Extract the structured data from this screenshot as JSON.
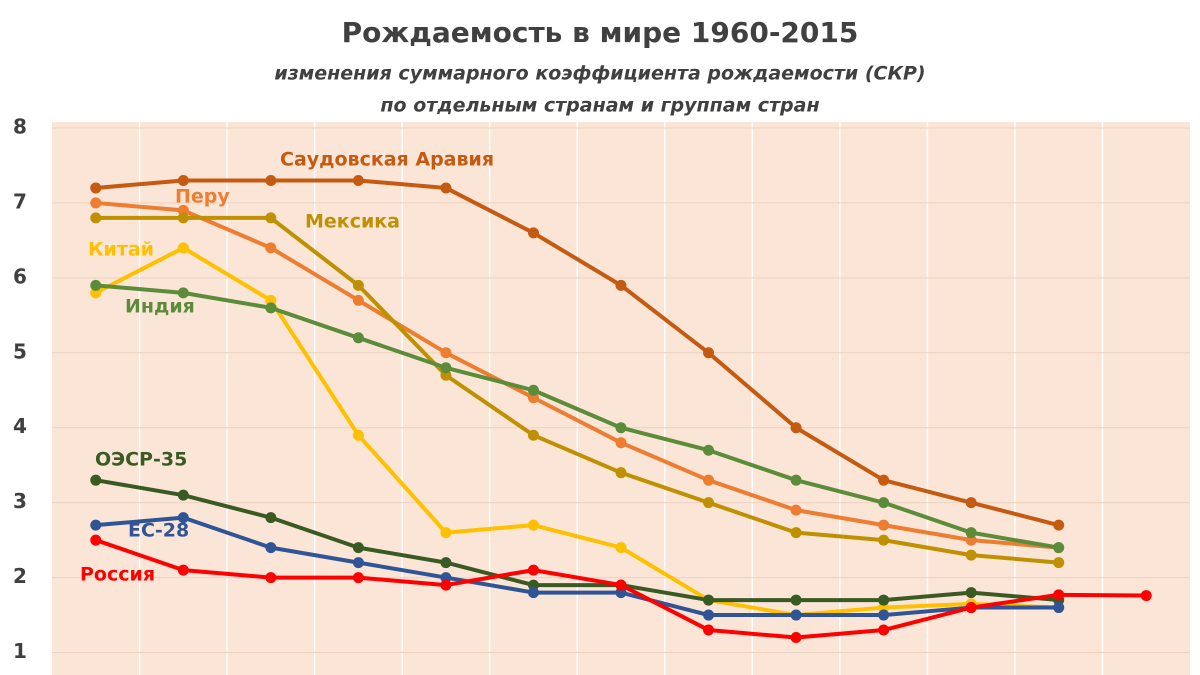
{
  "chart_data": {
    "type": "line",
    "title": "Рождаемость в мире 1960-2015",
    "subtitle": [
      "изменения суммарного коэффициента рождаемости (СКР)",
      "по отдельным странам и группам стран"
    ],
    "categories": [
      null,
      null,
      null,
      null,
      null,
      null,
      null,
      null,
      null,
      null,
      null,
      null,
      null
    ],
    "ylim": [
      0.7,
      8
    ],
    "yticks": [
      1,
      2,
      3,
      4,
      5,
      6,
      7,
      8
    ],
    "grid": true,
    "series": [
      {
        "name": "Саудовская Аравия",
        "color": "#c55a11",
        "values": [
          7.2,
          7.3,
          7.3,
          7.3,
          7.2,
          6.6,
          5.9,
          5.0,
          4.0,
          3.3,
          3.0,
          2.7,
          null
        ]
      },
      {
        "name": "Перу",
        "color": "#ed7d31",
        "values": [
          7.0,
          6.9,
          6.4,
          5.7,
          5.0,
          4.4,
          3.8,
          3.3,
          2.9,
          2.7,
          2.5,
          2.4,
          null
        ]
      },
      {
        "name": "Мексика",
        "color": "#bf9000",
        "values": [
          6.8,
          6.8,
          6.8,
          5.9,
          4.7,
          3.9,
          3.4,
          3.0,
          2.6,
          2.5,
          2.3,
          2.2,
          null
        ]
      },
      {
        "name": "Китай",
        "color": "#ffc000",
        "values": [
          5.8,
          6.4,
          5.7,
          3.9,
          2.6,
          2.7,
          2.4,
          1.7,
          1.5,
          1.6,
          1.65,
          1.6,
          null
        ]
      },
      {
        "name": "Индия",
        "color": "#5b8c3a",
        "values": [
          5.9,
          5.8,
          5.6,
          5.2,
          4.8,
          4.5,
          4.0,
          3.7,
          3.3,
          3.0,
          2.6,
          2.4,
          null
        ]
      },
      {
        "name": "ОЭСР-35",
        "color": "#3a5a24",
        "values": [
          3.3,
          3.1,
          2.8,
          2.4,
          2.2,
          1.9,
          1.9,
          1.7,
          1.7,
          1.7,
          1.8,
          1.7,
          null
        ]
      },
      {
        "name": "ЕС-28",
        "color": "#2f5597",
        "values": [
          2.7,
          2.8,
          2.4,
          2.2,
          2.0,
          1.8,
          1.8,
          1.5,
          1.5,
          1.5,
          1.6,
          1.6,
          null
        ]
      },
      {
        "name": "Россия",
        "color": "#ff0000",
        "values": [
          2.5,
          2.1,
          2.0,
          2.0,
          1.9,
          2.1,
          1.9,
          1.3,
          1.2,
          1.3,
          1.6,
          1.77,
          1.76
        ]
      }
    ]
  }
}
